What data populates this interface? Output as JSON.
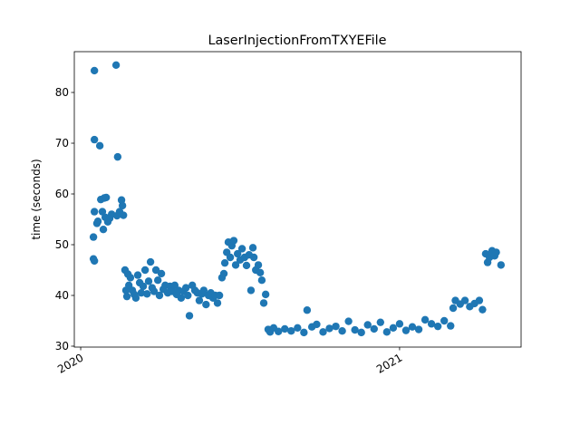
{
  "chart_data": {
    "type": "scatter",
    "title": "LaserInjectionFromTXYEFile",
    "ylabel": "time (seconds)",
    "color": "#1f77b4",
    "xlim": [
      2019.98,
      2021.381
    ],
    "xticks": [
      2020,
      2021
    ],
    "ylim": [
      29.82,
      88.04
    ],
    "yticks": [
      30,
      40,
      50,
      60,
      70,
      80
    ],
    "x": [
      2020.04,
      2020.04,
      2020.043,
      2020.043,
      2020.043,
      2020.043,
      2020.051,
      2020.054,
      2020.06,
      2020.063,
      2020.068,
      2020.071,
      2020.074,
      2020.077,
      2020.08,
      2020.085,
      2020.091,
      2020.097,
      2020.111,
      2020.114,
      2020.116,
      2020.122,
      2020.128,
      2020.131,
      2020.134,
      2020.139,
      2020.142,
      2020.145,
      2020.148,
      2020.151,
      2020.156,
      2020.162,
      2020.168,
      2020.173,
      2020.179,
      2020.185,
      2020.19,
      2020.196,
      2020.202,
      2020.208,
      2020.213,
      2020.219,
      2020.224,
      2020.23,
      2020.236,
      2020.242,
      2020.247,
      2020.253,
      2020.259,
      2020.265,
      2020.273,
      2020.28,
      2020.287,
      2020.295,
      2020.301,
      2020.307,
      2020.315,
      2020.322,
      2020.33,
      2020.336,
      2020.341,
      2020.35,
      2020.358,
      2020.366,
      2020.372,
      2020.38,
      2020.386,
      2020.393,
      2020.401,
      2020.408,
      2020.415,
      2020.422,
      2020.429,
      2020.435,
      2020.443,
      2020.449,
      2020.452,
      2020.458,
      2020.463,
      2020.469,
      2020.474,
      2020.48,
      2020.486,
      2020.492,
      2020.5,
      2020.506,
      2020.514,
      2020.52,
      2020.528,
      2020.534,
      2020.54,
      2020.543,
      2020.549,
      2020.557,
      2020.563,
      2020.568,
      2020.574,
      2020.58,
      2020.588,
      2020.594,
      2020.605,
      2020.62,
      2020.64,
      2020.66,
      2020.68,
      2020.7,
      2020.71,
      2020.725,
      2020.74,
      2020.76,
      2020.78,
      2020.8,
      2020.82,
      2020.84,
      2020.86,
      2020.88,
      2020.9,
      2020.92,
      2020.94,
      2020.96,
      2020.98,
      2021.0,
      2021.02,
      2021.04,
      2021.06,
      2021.08,
      2021.1,
      2021.12,
      2021.14,
      2021.16,
      2021.168,
      2021.175,
      2021.19,
      2021.205,
      2021.22,
      2021.235,
      2021.25,
      2021.26,
      2021.27,
      2021.276,
      2021.282,
      2021.29,
      2021.298,
      2021.303,
      2021.318
    ],
    "values": [
      51.5,
      47.2,
      46.8,
      84.3,
      70.7,
      56.5,
      54.2,
      54.6,
      69.5,
      58.9,
      56.5,
      53.0,
      59.2,
      55.4,
      59.3,
      54.5,
      55.2,
      56.0,
      85.4,
      55.7,
      67.3,
      56.5,
      58.8,
      57.7,
      55.8,
      45.0,
      41.0,
      39.8,
      44.2,
      42.0,
      43.5,
      41.0,
      40.2,
      39.5,
      44.0,
      42.5,
      40.5,
      41.8,
      45.0,
      40.3,
      42.8,
      46.6,
      41.5,
      40.8,
      45.0,
      43.0,
      40.0,
      44.3,
      41.2,
      42.0,
      40.5,
      41.8,
      40.8,
      42.0,
      40.2,
      41.0,
      39.5,
      40.8,
      41.5,
      40.0,
      36.0,
      42.0,
      41.0,
      40.5,
      39.0,
      40.3,
      41.0,
      38.2,
      40.0,
      40.5,
      39.5,
      40.0,
      38.5,
      40.0,
      43.5,
      44.3,
      46.4,
      48.5,
      50.5,
      47.5,
      49.8,
      50.8,
      46.0,
      48.2,
      47.0,
      49.2,
      47.5,
      45.9,
      48.0,
      41.0,
      49.4,
      47.5,
      45.0,
      46.0,
      44.5,
      43.0,
      38.5,
      40.2,
      33.3,
      32.8,
      33.6,
      32.9,
      33.4,
      33.0,
      33.6,
      32.7,
      37.1,
      33.8,
      34.3,
      32.8,
      33.5,
      33.9,
      33.0,
      34.9,
      33.2,
      32.7,
      34.2,
      33.4,
      34.7,
      32.8,
      33.6,
      34.4,
      33.1,
      33.8,
      33.3,
      35.2,
      34.4,
      33.9,
      35.0,
      34.0,
      37.5,
      39.0,
      38.3,
      39.0,
      37.8,
      38.4,
      39.0,
      37.2,
      48.2,
      46.5,
      47.5,
      48.8,
      47.8,
      48.5,
      46.0
    ]
  }
}
